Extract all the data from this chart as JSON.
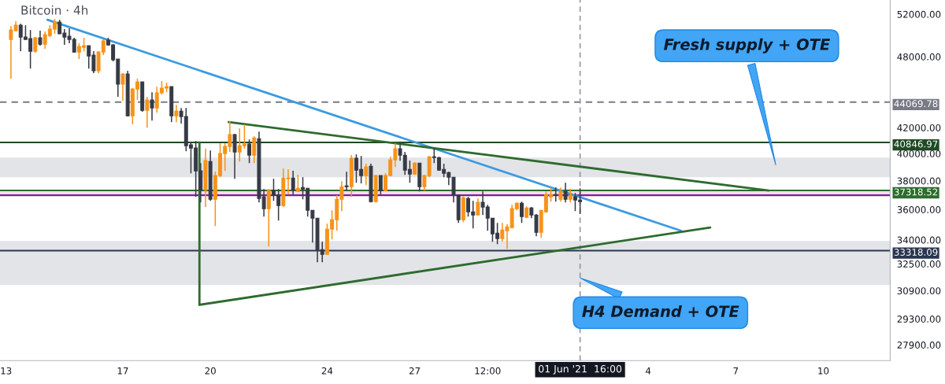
{
  "chart_data": {
    "type": "candlestick",
    "title": "Bitcoin · 4h",
    "log": "y",
    "x": [
      "2021-05-13T04:00",
      "2021-05-13T08:00",
      "2021-05-13T12:00",
      "2021-05-13T16:00",
      "2021-05-13T20:00",
      "2021-05-14T00:00",
      "2021-05-14T04:00",
      "2021-05-14T08:00",
      "2021-05-14T12:00",
      "2021-05-14T16:00",
      "2021-05-14T20:00",
      "2021-05-15T00:00",
      "2021-05-15T04:00",
      "2021-05-15T08:00",
      "2021-05-15T12:00",
      "2021-05-15T16:00",
      "2021-05-15T20:00",
      "2021-05-16T00:00",
      "2021-05-16T04:00",
      "2021-05-16T08:00",
      "2021-05-16T12:00",
      "2021-05-16T16:00",
      "2021-05-16T20:00",
      "2021-05-17T00:00",
      "2021-05-17T04:00",
      "2021-05-17T08:00",
      "2021-05-17T12:00",
      "2021-05-17T16:00",
      "2021-05-17T20:00",
      "2021-05-18T00:00",
      "2021-05-18T04:00",
      "2021-05-18T08:00",
      "2021-05-18T12:00",
      "2021-05-18T16:00",
      "2021-05-18T20:00",
      "2021-05-19T00:00",
      "2021-05-19T04:00",
      "2021-05-19T08:00",
      "2021-05-19T12:00",
      "2021-05-19T16:00",
      "2021-05-19T20:00",
      "2021-05-20T00:00",
      "2021-05-20T04:00",
      "2021-05-20T08:00",
      "2021-05-20T12:00",
      "2021-05-20T16:00",
      "2021-05-20T20:00",
      "2021-05-21T00:00",
      "2021-05-21T04:00",
      "2021-05-21T08:00",
      "2021-05-21T12:00",
      "2021-05-21T16:00",
      "2021-05-21T20:00",
      "2021-05-22T00:00",
      "2021-05-22T04:00",
      "2021-05-22T08:00",
      "2021-05-22T12:00",
      "2021-05-22T16:00",
      "2021-05-22T20:00",
      "2021-05-23T00:00",
      "2021-05-23T04:00",
      "2021-05-23T08:00",
      "2021-05-23T12:00",
      "2021-05-23T16:00",
      "2021-05-23T20:00",
      "2021-05-24T00:00",
      "2021-05-24T04:00",
      "2021-05-24T08:00",
      "2021-05-24T12:00",
      "2021-05-24T16:00",
      "2021-05-24T20:00",
      "2021-05-25T00:00",
      "2021-05-25T04:00",
      "2021-05-25T08:00",
      "2021-05-25T12:00",
      "2021-05-25T16:00",
      "2021-05-25T20:00",
      "2021-05-26T00:00",
      "2021-05-26T04:00",
      "2021-05-26T08:00",
      "2021-05-26T12:00",
      "2021-05-26T16:00",
      "2021-05-26T20:00",
      "2021-05-27T00:00",
      "2021-05-27T04:00",
      "2021-05-27T08:00",
      "2021-05-27T12:00",
      "2021-05-27T16:00",
      "2021-05-27T20:00",
      "2021-05-28T00:00",
      "2021-05-28T04:00",
      "2021-05-28T08:00",
      "2021-05-28T12:00",
      "2021-05-28T16:00",
      "2021-05-28T20:00",
      "2021-05-29T00:00",
      "2021-05-29T04:00",
      "2021-05-29T08:00",
      "2021-05-29T12:00",
      "2021-05-29T16:00",
      "2021-05-29T20:00",
      "2021-05-30T00:00",
      "2021-05-30T04:00",
      "2021-05-30T08:00",
      "2021-05-30T12:00",
      "2021-05-30T16:00",
      "2021-05-30T20:00",
      "2021-05-31T00:00",
      "2021-05-31T04:00",
      "2021-05-31T08:00",
      "2021-05-31T12:00",
      "2021-05-31T16:00",
      "2021-05-31T20:00",
      "2021-06-01T00:00",
      "2021-06-01T04:00",
      "2021-06-01T08:00",
      "2021-06-01T12:00",
      "2021-06-01T16:00"
    ],
    "ohlc": [
      [
        49590,
        50860,
        46050,
        50480
      ],
      [
        50410,
        51310,
        50330,
        50930
      ],
      [
        50930,
        51080,
        48500,
        49810
      ],
      [
        49810,
        50930,
        49590,
        49590
      ],
      [
        49660,
        50480,
        46940,
        48500
      ],
      [
        48500,
        49810,
        48360,
        49740
      ],
      [
        49740,
        50410,
        49010,
        49150
      ],
      [
        49150,
        50330,
        48720,
        50040
      ],
      [
        49960,
        50930,
        49810,
        50560
      ],
      [
        50560,
        51540,
        50110,
        51240
      ],
      [
        51240,
        51460,
        50110,
        50110
      ],
      [
        50180,
        50560,
        49080,
        49810
      ],
      [
        49890,
        50640,
        49230,
        49590
      ],
      [
        49590,
        49740,
        48360,
        48430
      ],
      [
        48430,
        49230,
        47790,
        48930
      ],
      [
        48860,
        49740,
        48500,
        49010
      ],
      [
        49010,
        49010,
        46940,
        48070
      ],
      [
        48140,
        48500,
        46530,
        46740
      ],
      [
        46740,
        48500,
        46530,
        48430
      ],
      [
        48430,
        49590,
        48140,
        49440
      ],
      [
        49520,
        49740,
        49010,
        49080
      ],
      [
        49080,
        49150,
        47580,
        47720
      ],
      [
        47790,
        47790,
        44510,
        45580
      ],
      [
        45580,
        46530,
        44180,
        46460
      ],
      [
        46460,
        46740,
        42890,
        42950
      ],
      [
        42950,
        45240,
        42260,
        45170
      ],
      [
        45170,
        46050,
        44240,
        45780
      ],
      [
        45780,
        45780,
        43270,
        43400
      ],
      [
        43400,
        44510,
        42000,
        44240
      ],
      [
        44240,
        44900,
        42570,
        43590
      ],
      [
        43590,
        45370,
        43200,
        44840
      ],
      [
        44840,
        45850,
        44700,
        45240
      ],
      [
        45240,
        45710,
        44900,
        45370
      ],
      [
        45370,
        45370,
        42440,
        42950
      ],
      [
        42950,
        43850,
        42440,
        43330
      ],
      [
        43330,
        43590,
        42320,
        42890
      ],
      [
        42890,
        43590,
        40180,
        40600
      ],
      [
        40660,
        40900,
        38540,
        40420
      ],
      [
        40420,
        40960,
        36870,
        38720
      ],
      [
        38720,
        39290,
        36490,
        37360
      ],
      [
        37360,
        40360,
        36170,
        39470
      ],
      [
        39410,
        40240,
        36600,
        36700
      ],
      [
        36700,
        38660,
        34900,
        38380
      ],
      [
        38380,
        40780,
        38260,
        40000
      ],
      [
        40000,
        40780,
        38720,
        40540
      ],
      [
        40540,
        42510,
        40120,
        41450
      ],
      [
        41450,
        41510,
        38150,
        40120
      ],
      [
        40120,
        41940,
        39410,
        40600
      ],
      [
        40600,
        42260,
        40360,
        40720
      ],
      [
        40720,
        41080,
        39290,
        39880
      ],
      [
        39880,
        41330,
        39290,
        41200
      ],
      [
        41140,
        41690,
        36490,
        36760
      ],
      [
        36870,
        37420,
        35530,
        36060
      ],
      [
        36060,
        37420,
        33580,
        37310
      ],
      [
        37310,
        38150,
        36600,
        36980
      ],
      [
        36980,
        37420,
        35260,
        36270
      ],
      [
        36270,
        38890,
        36170,
        38200
      ],
      [
        38150,
        38830,
        37030,
        38200
      ],
      [
        38200,
        38720,
        37030,
        37360
      ],
      [
        37250,
        38430,
        37250,
        37470
      ],
      [
        37530,
        38260,
        36700,
        37420
      ],
      [
        37470,
        37470,
        35530,
        35950
      ],
      [
        35950,
        35950,
        33830,
        35420
      ],
      [
        35420,
        35420,
        32600,
        33380
      ],
      [
        33380,
        33880,
        32600,
        33090
      ],
      [
        33090,
        35060,
        33090,
        34690
      ],
      [
        34690,
        35950,
        34030,
        35320
      ],
      [
        35320,
        36980,
        34590,
        36700
      ],
      [
        36700,
        37980,
        35900,
        37580
      ],
      [
        37640,
        38660,
        37310,
        37580
      ],
      [
        37580,
        39880,
        36870,
        39650
      ],
      [
        39650,
        39940,
        37860,
        38770
      ],
      [
        38830,
        39820,
        37810,
        38380
      ],
      [
        38380,
        39240,
        37700,
        39010
      ],
      [
        39060,
        39240,
        36490,
        36540
      ],
      [
        36540,
        38430,
        36490,
        38380
      ],
      [
        38380,
        38380,
        37030,
        37310
      ],
      [
        37310,
        38540,
        37250,
        38380
      ],
      [
        38380,
        39760,
        38380,
        39530
      ],
      [
        39530,
        40780,
        39000,
        40360
      ],
      [
        40360,
        40780,
        39470,
        39880
      ],
      [
        39880,
        40120,
        38430,
        38770
      ],
      [
        38830,
        39470,
        37860,
        38490
      ],
      [
        38490,
        39350,
        38430,
        39290
      ],
      [
        39290,
        39290,
        37250,
        37580
      ],
      [
        37580,
        38430,
        37310,
        38380
      ],
      [
        38380,
        39820,
        38260,
        39760
      ],
      [
        39760,
        40420,
        39290,
        39700
      ],
      [
        39700,
        39760,
        38720,
        38770
      ],
      [
        38830,
        39240,
        38260,
        38540
      ],
      [
        38600,
        38660,
        37700,
        38260
      ],
      [
        38260,
        38260,
        36490,
        36980
      ],
      [
        36980,
        37030,
        35110,
        35320
      ],
      [
        35320,
        36920,
        35160,
        36810
      ],
      [
        36760,
        36870,
        35530,
        35840
      ],
      [
        35840,
        36600,
        34750,
        35630
      ],
      [
        35630,
        36760,
        35630,
        36490
      ],
      [
        36490,
        37250,
        35630,
        36170
      ],
      [
        36170,
        36330,
        34590,
        35420
      ],
      [
        35420,
        35420,
        33880,
        34390
      ],
      [
        34440,
        35110,
        33730,
        34080
      ],
      [
        34080,
        35110,
        33880,
        34640
      ],
      [
        34590,
        35010,
        33430,
        34850
      ],
      [
        34800,
        36330,
        34750,
        36060
      ],
      [
        36060,
        36490,
        35950,
        36430
      ],
      [
        36430,
        36540,
        35110,
        35530
      ],
      [
        35480,
        36220,
        35420,
        36110
      ],
      [
        36110,
        36170,
        35420,
        35630
      ],
      [
        35630,
        35690,
        34230,
        34490
      ],
      [
        34490,
        35950,
        34130,
        35950
      ],
      [
        35840,
        37250,
        35790,
        37030
      ],
      [
        36870,
        37530,
        36540,
        37030
      ],
      [
        37030,
        37530,
        36540,
        36980
      ],
      [
        36700,
        37530,
        36540,
        37250
      ],
      [
        37250,
        37860,
        36490,
        36700
      ],
      [
        36700,
        37420,
        36490,
        36980
      ],
      [
        36870,
        37140,
        35900,
        36650
      ],
      [
        36650,
        37470,
        35690,
        36540
      ]
    ],
    "colors": [
      "#f7931a",
      "#f7931a",
      "#363a45",
      "#363a45",
      "#363a45",
      "#f7931a",
      "#363a45",
      "#f7931a",
      "#f7931a",
      "#f7931a",
      "#363a45",
      "#363a45",
      "#363a45",
      "#363a45",
      "#f7931a",
      "#f7931a",
      "#363a45",
      "#363a45",
      "#f7931a",
      "#f7931a",
      "#363a45",
      "#363a45",
      "#363a45",
      "#f7931a",
      "#363a45",
      "#f7931a",
      "#f7931a",
      "#363a45",
      "#f7931a",
      "#363a45",
      "#f7931a",
      "#f7931a",
      "#f7931a",
      "#363a45",
      "#f7931a",
      "#363a45",
      "#363a45",
      "#363a45",
      "#363a45",
      "#363a45",
      "#f7931a",
      "#363a45",
      "#f7931a",
      "#f7931a",
      "#f7931a",
      "#f7931a",
      "#363a45",
      "#f7931a",
      "#f7931a",
      "#363a45",
      "#f7931a",
      "#363a45",
      "#363a45",
      "#f7931a",
      "#363a45",
      "#363a45",
      "#f7931a",
      "#f7931a",
      "#363a45",
      "#f7931a",
      "#363a45",
      "#363a45",
      "#363a45",
      "#363a45",
      "#363a45",
      "#f7931a",
      "#f7931a",
      "#f7931a",
      "#f7931a",
      "#363a45",
      "#f7931a",
      "#363a45",
      "#363a45",
      "#f7931a",
      "#363a45",
      "#f7931a",
      "#363a45",
      "#f7931a",
      "#f7931a",
      "#f7931a",
      "#363a45",
      "#363a45",
      "#363a45",
      "#f7931a",
      "#363a45",
      "#f7931a",
      "#f7931a",
      "#363a45",
      "#363a45",
      "#363a45",
      "#363a45",
      "#363a45",
      "#363a45",
      "#f7931a",
      "#363a45",
      "#363a45",
      "#f7931a",
      "#363a45",
      "#363a45",
      "#363a45",
      "#363a45",
      "#f7931a",
      "#f7931a",
      "#f7931a",
      "#f7931a",
      "#363a45",
      "#f7931a",
      "#363a45",
      "#363a45",
      "#f7931a",
      "#f7931a",
      "#f7931a",
      "#363a45",
      "#f7931a",
      "#363a45",
      "#f7931a",
      "#363a45",
      "#363a45"
    ],
    "series": [
      {
        "type": "line",
        "color": "#3d9ae0",
        "x": [
          "2021-05-14T10:00",
          "2021-06-05T03:00"
        ],
        "values": [
          51460,
          34590
        ]
      },
      {
        "type": "line",
        "color": "#2e6b2e",
        "x": [
          "2021-05-20T15:00",
          "2021-06-08T03:00"
        ],
        "values": [
          42440,
          37310
        ]
      },
      {
        "type": "line",
        "color": "#2e6b2e",
        "x": [
          "2021-05-19T15:00",
          "2021-06-06T03:00"
        ],
        "values": [
          30090,
          34800
        ]
      },
      {
        "type": "line",
        "color": "#2e6b2e",
        "x": [
          "2021-05-19T15:00",
          "2021-05-19T15:00"
        ],
        "values": [
          30090,
          40850
        ]
      }
    ],
    "ref_lines": [
      {
        "axis": "y",
        "value": 44069.78,
        "label": "44069.78",
        "color": "#787b86",
        "line_style": "dashed"
      },
      {
        "axis": "y",
        "value": 40846.97,
        "label": "40846.97",
        "color": "#1f4a24"
      },
      {
        "axis": "y",
        "value": 37318.52,
        "label": "37318.52",
        "color": "#2e6b2e"
      },
      {
        "axis": "y",
        "value": 36980,
        "color": "#7b1fa2"
      },
      {
        "axis": "y",
        "value": 33318.09,
        "label": "33318.09",
        "color": "#2a3550"
      },
      {
        "axis": "x",
        "value": "2021-06-01T16:00",
        "label": "01 Jun '21  16:00",
        "color": "#9598a1",
        "line_style": "dashed"
      }
    ],
    "bands": [
      {
        "axis": "y",
        "from": 38260,
        "to": 39700,
        "color": "#e3e4e8"
      },
      {
        "axis": "y",
        "from": 36980,
        "to": 37360,
        "color": "#f9dde6"
      },
      {
        "axis": "y",
        "from": 31230,
        "to": 33930,
        "color": "#e3e4e8"
      }
    ],
    "annotations": [
      "Fresh supply + OTE",
      "H4 Demand + OTE"
    ],
    "xlim": [
      "2021-05-12T19:00",
      "2021-06-12T07:00"
    ],
    "xticks": [
      {
        "value": "2021-05-13",
        "label": "13"
      },
      {
        "value": "2021-05-17",
        "label": "17"
      },
      {
        "value": "2021-05-20",
        "label": "20"
      },
      {
        "value": "2021-05-24",
        "label": "24"
      },
      {
        "value": "2021-05-27",
        "label": "27"
      },
      {
        "value": "2021-05-29T12:00",
        "label": "12:00"
      },
      {
        "value": "2021-06-04",
        "label": "4"
      },
      {
        "value": "2021-06-07",
        "label": "7"
      },
      {
        "value": "2021-06-10",
        "label": "10"
      }
    ],
    "ylim": [
      27090,
      53410
    ],
    "yticks": [
      {
        "value": 52000,
        "label": "52000.00"
      },
      {
        "value": 48000,
        "label": "48000.00"
      },
      {
        "value": 42000,
        "label": "42000.00"
      },
      {
        "value": 40000,
        "label": "40000.00"
      },
      {
        "value": 38000,
        "label": "38000.00"
      },
      {
        "value": 36000,
        "label": "36000.00"
      },
      {
        "value": 34000,
        "label": "34000.00"
      },
      {
        "value": 32500,
        "label": "32500.00"
      },
      {
        "value": 30900,
        "label": "30900.00"
      },
      {
        "value": 29300,
        "label": "29300.00"
      },
      {
        "value": 27900,
        "label": "27900.00"
      }
    ]
  }
}
